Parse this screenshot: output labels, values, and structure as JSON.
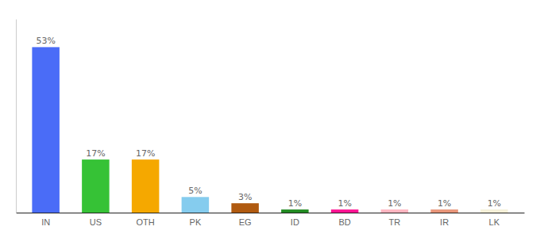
{
  "chart_data": {
    "type": "bar",
    "categories": [
      "IN",
      "US",
      "OTH",
      "PK",
      "EG",
      "ID",
      "BD",
      "TR",
      "IR",
      "LK"
    ],
    "values": [
      53,
      17,
      17,
      5,
      3,
      1,
      1,
      1,
      1,
      1
    ],
    "value_labels": [
      "53%",
      "17%",
      "17%",
      "5%",
      "3%",
      "1%",
      "1%",
      "1%",
      "1%",
      "1%"
    ],
    "colors": [
      "#4a6cf7",
      "#36c236",
      "#f5a800",
      "#85ccee",
      "#b05a10",
      "#228b22",
      "#ff1493",
      "#ffb6c1",
      "#e8967a",
      "#f5f0d8"
    ],
    "ylim": [
      0,
      62
    ],
    "data_labels": true,
    "tick_labels": "x"
  }
}
